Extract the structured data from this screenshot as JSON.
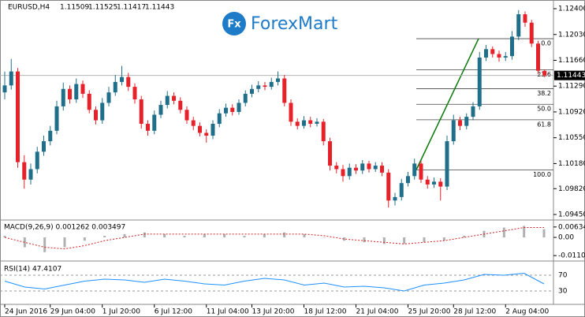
{
  "chart_data": {
    "type": "candlestick",
    "symbol": "EURUSD,H4",
    "logo": "ForexMart",
    "logo_icon": "Fx",
    "bull_color": "#1f6f8b",
    "bear_color": "#e8202a",
    "ylim": [
      1.09382,
      1.12502
    ],
    "yticks": [
      {
        "value": 1.124,
        "label": "1.12400"
      },
      {
        "value": 1.1203,
        "label": "1.12030"
      },
      {
        "value": 1.1166,
        "label": "1.11660"
      },
      {
        "value": 1.1129,
        "label": "1.11290"
      },
      {
        "value": 1.1092,
        "label": "1.10920"
      },
      {
        "value": 1.1055,
        "label": "1.10550"
      },
      {
        "value": 1.1018,
        "label": "1.10180"
      },
      {
        "value": 1.0982,
        "label": "1.09820"
      },
      {
        "value": 1.0945,
        "label": "1.09450"
      }
    ],
    "categories": [
      "24 Jun 2016",
      null,
      null,
      null,
      null,
      null,
      null,
      "29 Jun 04:00",
      null,
      null,
      null,
      null,
      null,
      null,
      null,
      "1 Jul 20:00",
      null,
      null,
      null,
      null,
      null,
      null,
      null,
      "6 Jul 12:00",
      null,
      null,
      null,
      null,
      null,
      null,
      null,
      "11 Jul 04:00",
      null,
      null,
      null,
      null,
      null,
      null,
      "13 Jul 20:00",
      null,
      null,
      null,
      null,
      null,
      null,
      null,
      "18 Jul 12:00",
      null,
      null,
      null,
      null,
      null,
      null,
      null,
      "21 Jul 04:00",
      null,
      null,
      null,
      null,
      null,
      null,
      null,
      "25 Jul 20:00",
      null,
      null,
      null,
      null,
      null,
      null,
      "28 Jul 12:00",
      null,
      null,
      null,
      null,
      null,
      null,
      null,
      "2 Aug 04:00",
      null,
      null,
      null,
      null,
      null,
      null
    ],
    "open": [
      1.112,
      1.113,
      1.115,
      1.102,
      1.0995,
      1.101,
      1.1035,
      1.105,
      1.1065,
      1.11,
      1.1125,
      1.111,
      1.1132,
      1.1118,
      1.1095,
      1.108,
      1.1105,
      1.112,
      1.1135,
      1.1142,
      1.1128,
      1.111,
      1.1075,
      1.1065,
      1.1088,
      1.1102,
      1.1115,
      1.1108,
      1.1095,
      1.108,
      1.1072,
      1.1062,
      1.1058,
      1.1075,
      1.109,
      1.1098,
      1.1092,
      1.1105,
      1.1118,
      1.1125,
      1.113,
      1.1128,
      1.1135,
      1.114,
      1.1105,
      1.1078,
      1.1072,
      1.108,
      1.1075,
      1.1078,
      1.105,
      1.1015,
      1.101,
      1.1,
      1.1012,
      1.1008,
      1.1018,
      1.101,
      1.1015,
      1.1005,
      1.0965,
      1.097,
      1.099,
      1.1,
      1.1018,
      1.0995,
      1.0988,
      1.0992,
      1.0985,
      1.105,
      1.108,
      1.1072,
      1.1085,
      1.11,
      1.117,
      1.1182,
      1.1175,
      1.117,
      1.1172,
      1.12,
      1.1232,
      1.122,
      1.119,
      1.11509
    ],
    "high": [
      1.115,
      1.1168,
      1.1155,
      1.103,
      1.1018,
      1.1042,
      1.1058,
      1.1072,
      1.1108,
      1.1134,
      1.113,
      1.114,
      1.1137,
      1.1123,
      1.11,
      1.1112,
      1.1128,
      1.1145,
      1.1158,
      1.1148,
      1.1133,
      1.1115,
      1.108,
      1.1094,
      1.1108,
      1.1122,
      1.112,
      1.1113,
      1.11,
      1.1085,
      1.1077,
      1.1067,
      1.108,
      1.1096,
      1.1104,
      1.1103,
      1.111,
      1.1123,
      1.1131,
      1.1136,
      1.1135,
      1.1141,
      1.115,
      1.1145,
      1.111,
      1.1083,
      1.1086,
      1.1085,
      1.1083,
      1.1082,
      1.1055,
      1.102,
      1.1016,
      1.1018,
      1.1017,
      1.1023,
      1.1022,
      1.102,
      1.102,
      1.101,
      1.0976,
      1.0996,
      1.1006,
      1.1025,
      1.1022,
      1.1,
      1.0998,
      1.0997,
      1.1058,
      1.1088,
      1.1085,
      1.109,
      1.1106,
      1.1178,
      1.1188,
      1.1186,
      1.118,
      1.1178,
      1.1208,
      1.1238,
      1.1236,
      1.1224,
      1.1194,
      1.11525
    ],
    "low": [
      1.111,
      1.1124,
      1.1012,
      1.0982,
      1.0988,
      1.1004,
      1.1029,
      1.1044,
      1.106,
      1.1094,
      1.1104,
      1.1105,
      1.1112,
      1.109,
      1.1074,
      1.1075,
      1.11,
      1.1115,
      1.113,
      1.1122,
      1.1104,
      1.1068,
      1.1058,
      1.106,
      1.1083,
      1.1097,
      1.1103,
      1.109,
      1.1075,
      1.1066,
      1.1057,
      1.1048,
      1.1053,
      1.107,
      1.1085,
      1.1087,
      1.1088,
      1.11,
      1.1113,
      1.112,
      1.1123,
      1.1124,
      1.113,
      1.11,
      1.1072,
      1.1067,
      1.1068,
      1.107,
      1.1071,
      1.1044,
      1.1008,
      1.1004,
      1.0992,
      1.0995,
      1.1003,
      1.1003,
      1.1005,
      1.1006,
      1.1,
      1.0955,
      1.0958,
      1.0965,
      1.0985,
      1.0995,
      1.099,
      1.0982,
      1.0983,
      1.0965,
      1.098,
      1.1045,
      1.1066,
      1.1067,
      1.108,
      1.1095,
      1.1165,
      1.117,
      1.1164,
      1.1165,
      1.1167,
      1.1195,
      1.1214,
      1.1185,
      1.1146,
      1.11417
    ],
    "close": [
      1.113,
      1.115,
      1.102,
      1.0995,
      1.101,
      1.1035,
      1.105,
      1.1065,
      1.11,
      1.1125,
      1.111,
      1.1132,
      1.1118,
      1.1095,
      1.108,
      1.1105,
      1.112,
      1.1135,
      1.1142,
      1.1128,
      1.111,
      1.1075,
      1.1065,
      1.1088,
      1.1102,
      1.1115,
      1.1108,
      1.1095,
      1.108,
      1.1072,
      1.1062,
      1.1058,
      1.1075,
      1.109,
      1.1098,
      1.1092,
      1.1105,
      1.1118,
      1.1125,
      1.113,
      1.1128,
      1.1135,
      1.114,
      1.1105,
      1.1078,
      1.1072,
      1.108,
      1.1075,
      1.1078,
      1.105,
      1.1015,
      1.101,
      1.1,
      1.1012,
      1.1008,
      1.1018,
      1.101,
      1.1015,
      1.1005,
      1.0965,
      1.097,
      1.099,
      1.1,
      1.1018,
      1.0995,
      1.0988,
      1.0992,
      1.0985,
      1.105,
      1.108,
      1.1072,
      1.1085,
      1.11,
      1.117,
      1.1182,
      1.1175,
      1.117,
      1.1172,
      1.12,
      1.1232,
      1.122,
      1.119,
      1.1151,
      1.11443
    ],
    "fib_color": "#444444",
    "trend_color": "#0a7a0a",
    "fib_levels": [
      {
        "value": 1.1197,
        "label": "0.0"
      },
      {
        "value": 1.11526,
        "label": "23.6"
      },
      {
        "value": 1.11252,
        "label": "38.2"
      },
      {
        "value": 1.1103,
        "label": "50.0"
      },
      {
        "value": 1.10808,
        "label": "61.8"
      },
      {
        "value": 1.1009,
        "label": "100.0"
      }
    ],
    "macd": {
      "label": "MACD(9,26,9) 0.001262 0.003497",
      "ylim": [
        -0.0139,
        0.00963
      ],
      "yticks": [
        0.006342,
        {
          "value": 0,
          "label": "0.00"
        },
        -0.01108
      ],
      "hist_color": "#b0b0b0",
      "signal_color": "#d02020",
      "histogram": [
        0.001,
        -0.006,
        -0.009,
        -0.006,
        -0.002,
        0.001,
        0.002,
        0.003,
        0.002,
        0.001,
        0.002,
        0.002,
        0.001,
        0.002,
        0.003,
        0.002,
        0.0,
        -0.002,
        -0.003,
        -0.004,
        -0.004,
        -0.003,
        -0.002,
        0.001,
        0.004,
        0.006,
        0.007,
        0.005
      ],
      "signal": [
        0.0,
        -0.003,
        -0.006,
        -0.007,
        -0.005,
        -0.002,
        0.0,
        0.002,
        0.002,
        0.002,
        0.002,
        0.002,
        0.002,
        0.002,
        0.002,
        0.002,
        0.001,
        -0.001,
        -0.002,
        -0.003,
        -0.004,
        -0.003,
        -0.002,
        0.0,
        0.002,
        0.004,
        0.006,
        0.006
      ]
    },
    "rsi": {
      "label": "RSI(14) 47.4107",
      "ylim": [
        0,
        100
      ],
      "yticks": [
        70,
        30
      ],
      "color": "#1e90ff",
      "values": [
        55,
        40,
        35,
        45,
        55,
        60,
        58,
        52,
        60,
        55,
        48,
        45,
        55,
        62,
        58,
        45,
        50,
        40,
        42,
        38,
        30,
        45,
        50,
        58,
        72,
        70,
        75,
        48
      ]
    }
  }
}
